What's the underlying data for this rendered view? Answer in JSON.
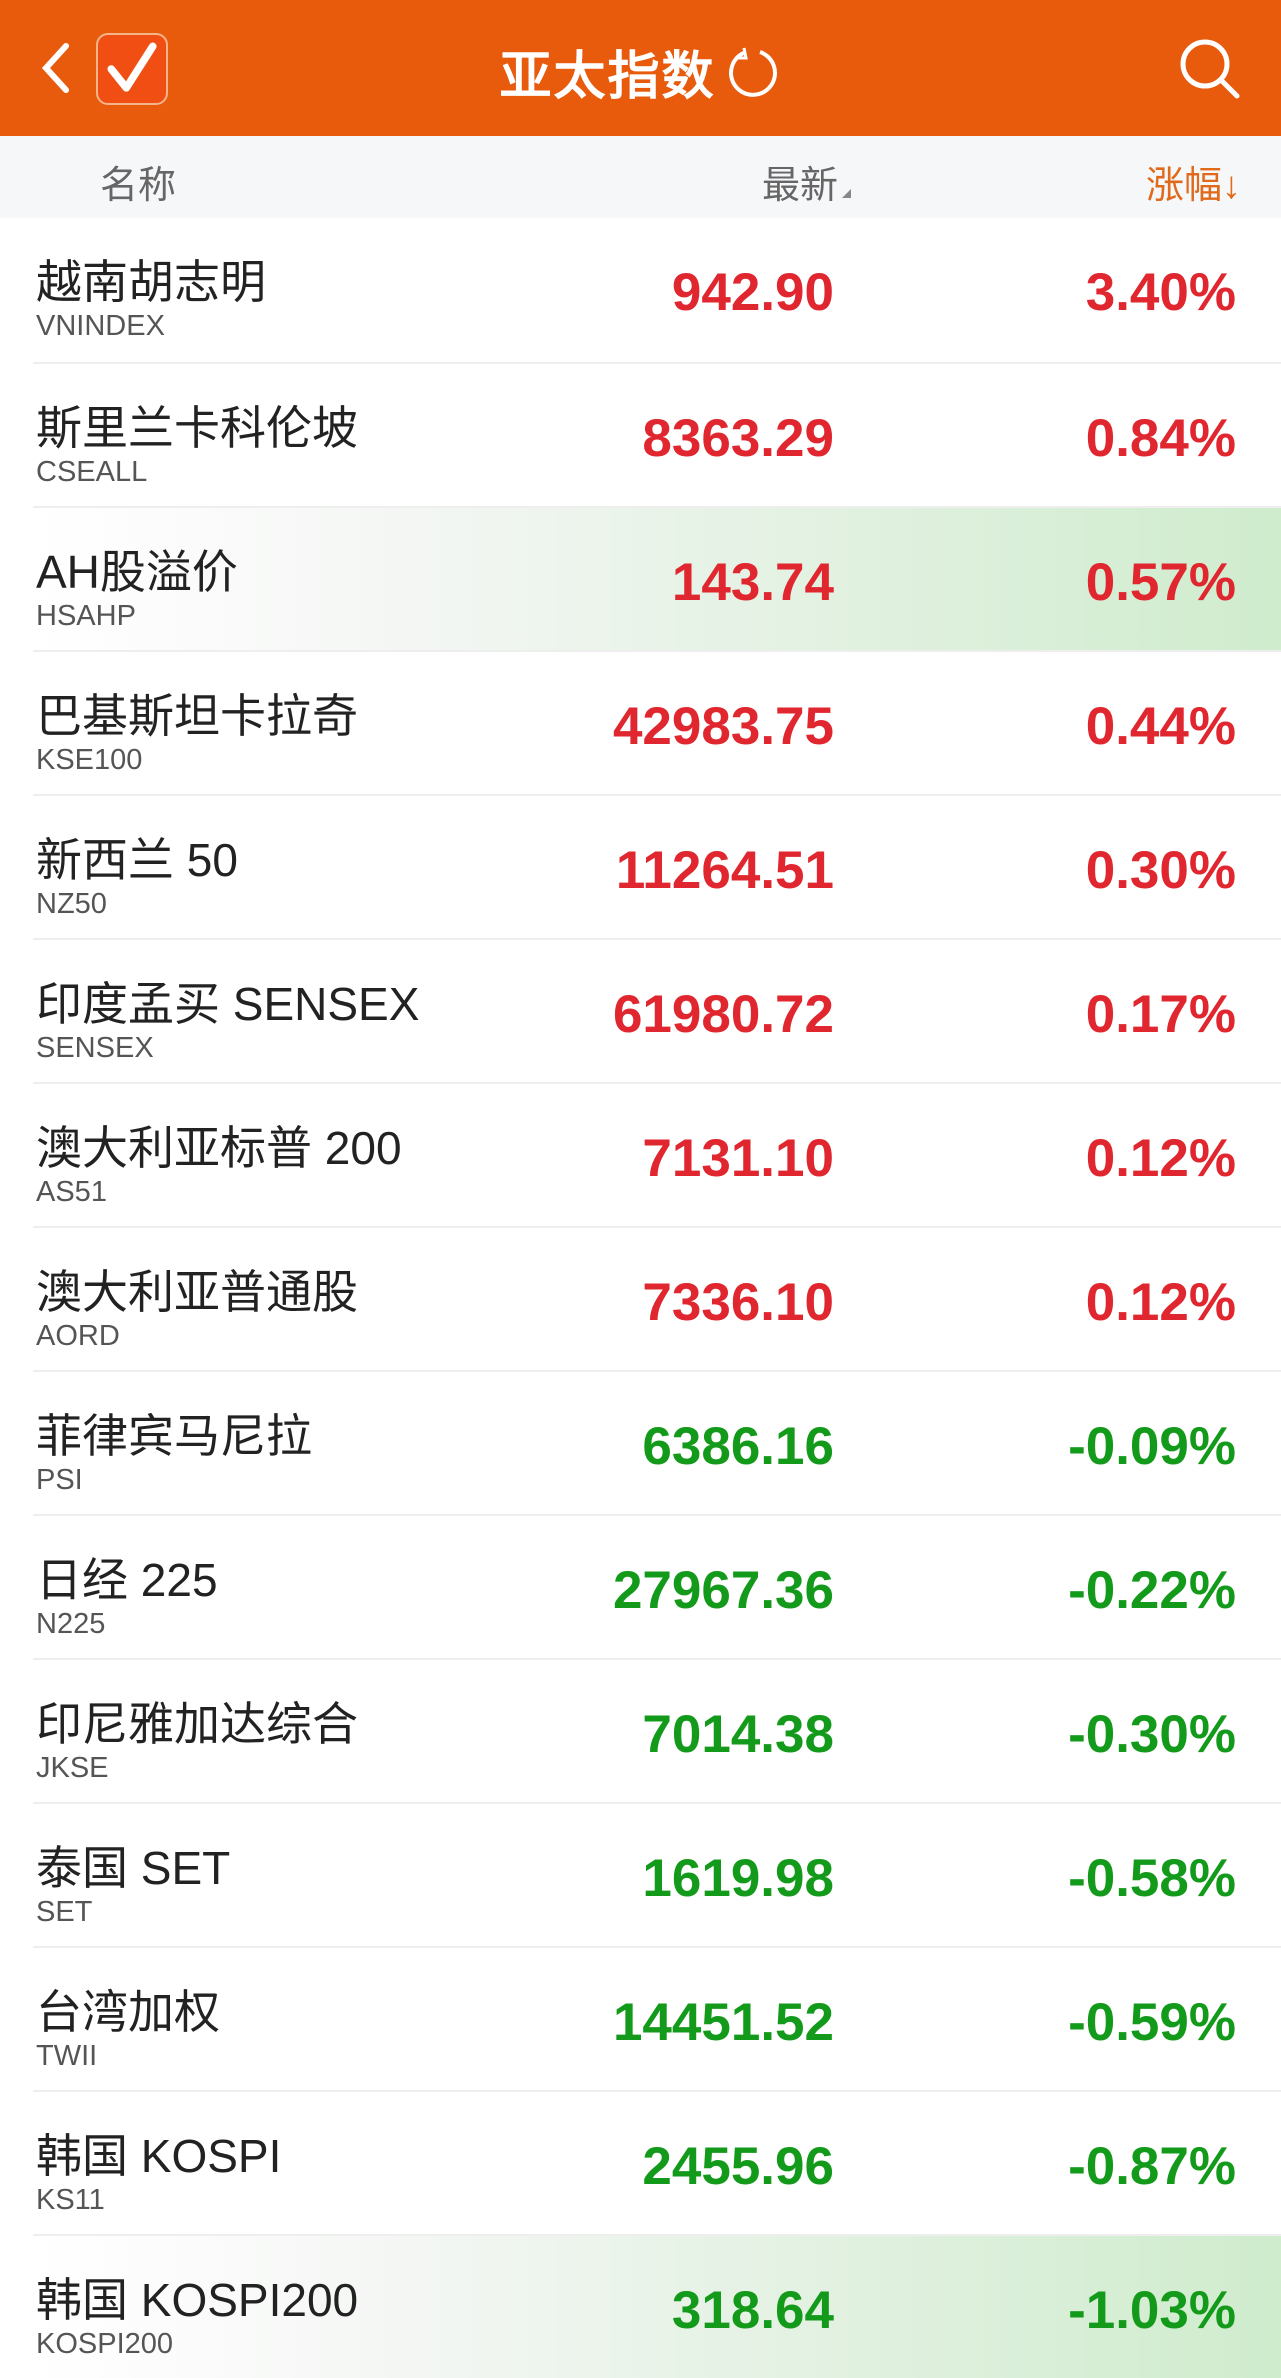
{
  "header": {
    "title": "亚太指数",
    "icons": [
      "back-icon",
      "checkmark-app-icon",
      "refresh-icon",
      "search-icon"
    ]
  },
  "columns": {
    "name": "名称",
    "latest": "最新",
    "change": "涨幅↓"
  },
  "colors": {
    "brand": "#e85a0c",
    "up": "#e0262e",
    "down": "#149a1b"
  },
  "rows": [
    {
      "name": "越南胡志明",
      "code": "VNINDEX",
      "value": "942.90",
      "change": "3.40%",
      "dir": "up"
    },
    {
      "name": "斯里兰卡科伦坡",
      "code": "CSEALL",
      "value": "8363.29",
      "change": "0.84%",
      "dir": "up"
    },
    {
      "name": "AH股溢价",
      "code": "HSAHP",
      "value": "143.74",
      "change": "0.57%",
      "dir": "up",
      "highlight": true
    },
    {
      "name": "巴基斯坦卡拉奇",
      "code": "KSE100",
      "value": "42983.75",
      "change": "0.44%",
      "dir": "up"
    },
    {
      "name": "新西兰 50",
      "code": "NZ50",
      "value": "11264.51",
      "change": "0.30%",
      "dir": "up"
    },
    {
      "name": "印度孟买 SENSEX",
      "code": "SENSEX",
      "value": "61980.72",
      "change": "0.17%",
      "dir": "up"
    },
    {
      "name": "澳大利亚标普 200",
      "code": "AS51",
      "value": "7131.10",
      "change": "0.12%",
      "dir": "up"
    },
    {
      "name": "澳大利亚普通股",
      "code": "AORD",
      "value": "7336.10",
      "change": "0.12%",
      "dir": "up"
    },
    {
      "name": "菲律宾马尼拉",
      "code": "PSI",
      "value": "6386.16",
      "change": "-0.09%",
      "dir": "dn"
    },
    {
      "name": "日经 225",
      "code": "N225",
      "value": "27967.36",
      "change": "-0.22%",
      "dir": "dn"
    },
    {
      "name": "印尼雅加达综合",
      "code": "JKSE",
      "value": "7014.38",
      "change": "-0.30%",
      "dir": "dn"
    },
    {
      "name": "泰国 SET",
      "code": "SET",
      "value": "1619.98",
      "change": "-0.58%",
      "dir": "dn"
    },
    {
      "name": "台湾加权",
      "code": "TWII",
      "value": "14451.52",
      "change": "-0.59%",
      "dir": "dn"
    },
    {
      "name": "韩国 KOSPI",
      "code": "KS11",
      "value": "2455.96",
      "change": "-0.87%",
      "dir": "dn"
    },
    {
      "name": "韩国 KOSPI200",
      "code": "KOSPI200",
      "value": "318.64",
      "change": "-1.03%",
      "dir": "dn",
      "highlight": true
    }
  ]
}
